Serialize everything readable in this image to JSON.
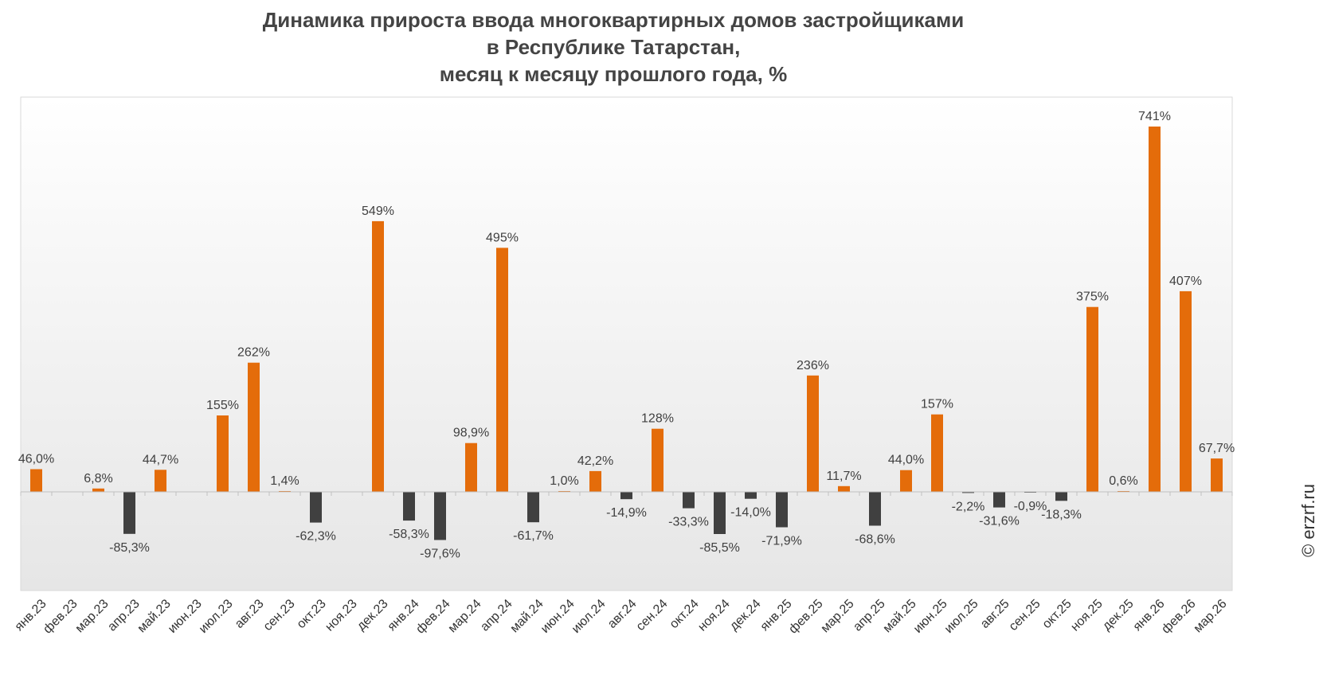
{
  "title_lines": [
    "Динамика прироста ввода многоквартирных домов застройщиками",
    "в Республике Татарстан,",
    "месяц к месяцу прошлого года, %"
  ],
  "watermark": "© erzrf.ru",
  "colors": {
    "positive": "#E46C0A",
    "negative": "#404040",
    "label": "#404040",
    "axis": "#C0C0C0"
  },
  "chart_data": {
    "type": "bar",
    "title": "Динамика прироста ввода многоквартирных домов застройщиками в Республике Татарстан, месяц к месяцу прошлого года, %",
    "xlabel": "",
    "ylabel": "",
    "grid": false,
    "legend": "none",
    "ylim": [
      -200,
      800
    ],
    "categories": [
      "янв.23",
      "фев.23",
      "мар.23",
      "апр.23",
      "май.23",
      "июн.23",
      "июл.23",
      "авг.23",
      "сен.23",
      "окт.23",
      "ноя.23",
      "дек.23",
      "янв.24",
      "фев.24",
      "мар.24",
      "апр.24",
      "май.24",
      "июн.24",
      "июл.24",
      "авг.24",
      "сен.24",
      "окт.24",
      "ноя.24",
      "дек.24",
      "янв.25",
      "фев.25",
      "мар.25",
      "апр.25",
      "май.25",
      "июн.25",
      "июл.25",
      "авг.25",
      "сен.25",
      "окт.25",
      "ноя.25",
      "дек.25",
      "янв.26",
      "фев.26",
      "мар.26"
    ],
    "values": [
      46.0,
      null,
      6.8,
      -85.3,
      44.7,
      null,
      155,
      262,
      1.4,
      -62.3,
      null,
      549,
      -58.3,
      -97.6,
      98.9,
      495,
      -61.7,
      1.0,
      42.2,
      -14.9,
      128,
      -33.3,
      -85.5,
      -14.0,
      -71.9,
      236,
      11.7,
      -68.6,
      44.0,
      157,
      -2.2,
      -31.6,
      -0.9,
      -18.3,
      375,
      0.6,
      741,
      407,
      67.7
    ],
    "data_labels": [
      "46,0%",
      "",
      "6,8%",
      "-85,3%",
      "44,7%",
      "",
      "155%",
      "262%",
      "1,4%",
      "-62,3%",
      "",
      "549%",
      "-58,3%",
      "-97,6%",
      "98,9%",
      "495%",
      "-61,7%",
      "1,0%",
      "42,2%",
      "-14,9%",
      "128%",
      "-33,3%",
      "-85,5%",
      "-14,0%",
      "-71,9%",
      "236%",
      "11,7%",
      "-68,6%",
      "44,0%",
      "157%",
      "-2,2%",
      "-31,6%",
      "-0,9%",
      "-18,3%",
      "375%",
      "0,6%",
      "741%",
      "407%",
      "67,7%"
    ]
  }
}
